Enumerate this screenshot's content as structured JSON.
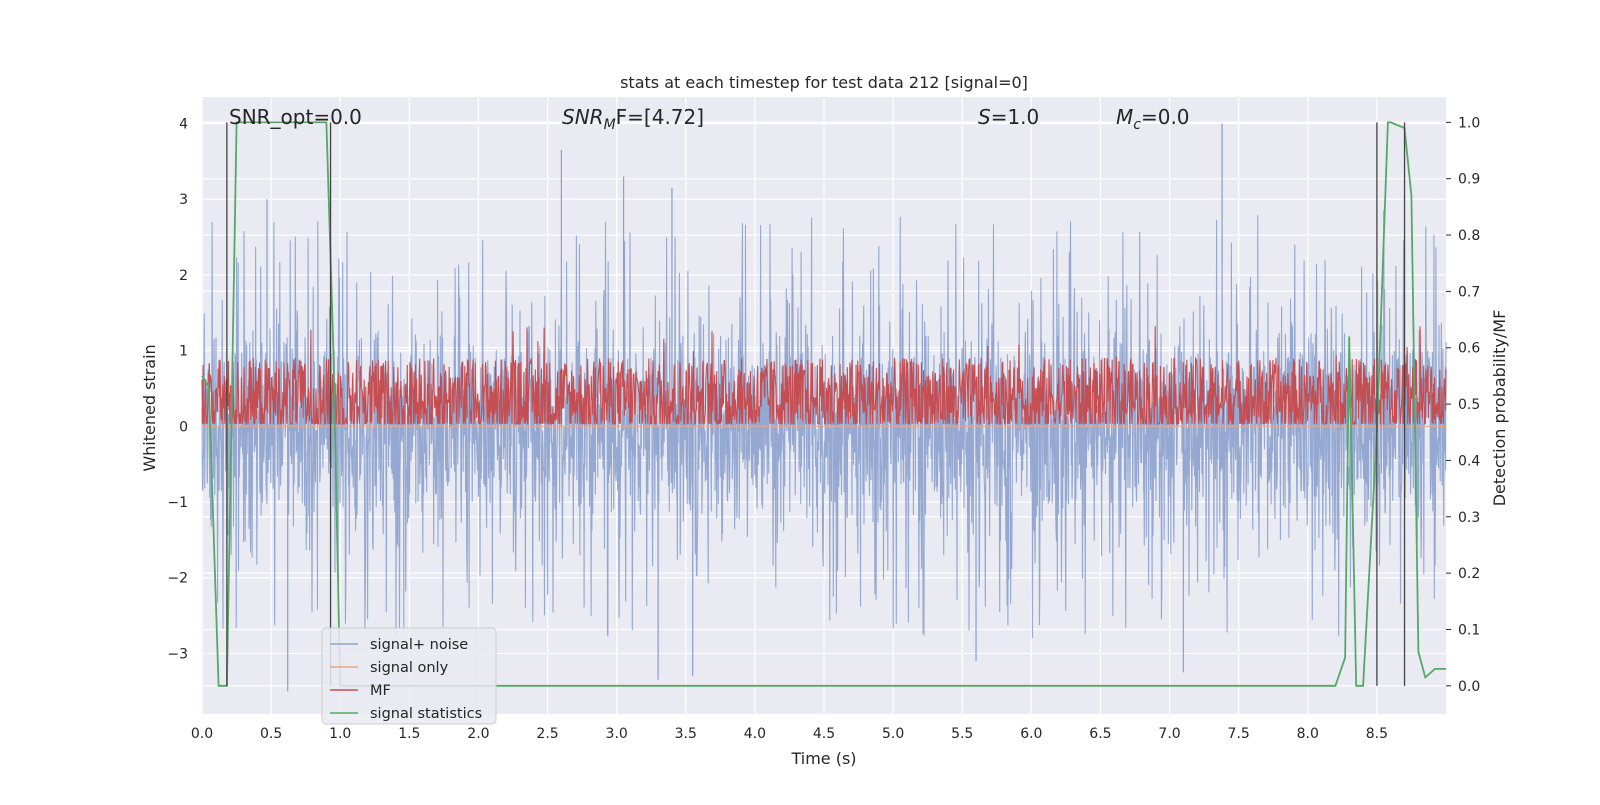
{
  "chart_data": {
    "type": "line",
    "title": "stats at each timestep for test data 212 [signal=0]",
    "xlabel": "Time (s)",
    "ylabel": "Whitened strain",
    "y2label": "Detection probability/MF",
    "xlim": [
      0.0,
      9.0
    ],
    "ylim": [
      -3.8,
      4.35
    ],
    "y2lim": [
      -0.05,
      1.045
    ],
    "x_ticks": [
      0.0,
      0.5,
      1.0,
      1.5,
      2.0,
      2.5,
      3.0,
      3.5,
      4.0,
      4.5,
      5.0,
      5.5,
      6.0,
      6.5,
      7.0,
      7.5,
      8.0,
      8.5
    ],
    "x_tick_labels": [
      "0.0",
      "0.5",
      "1.0",
      "1.5",
      "2.0",
      "2.5",
      "3.0",
      "3.5",
      "4.0",
      "4.5",
      "5.0",
      "5.5",
      "6.0",
      "6.5",
      "7.0",
      "7.5",
      "8.0",
      "8.5"
    ],
    "y_ticks": [
      -3,
      -2,
      -1,
      0,
      1,
      2,
      3,
      4
    ],
    "y_tick_labels": [
      "−3",
      "−2",
      "−1",
      "0",
      "1",
      "2",
      "3",
      "4"
    ],
    "y2_ticks": [
      0.0,
      0.1,
      0.2,
      0.3,
      0.4,
      0.5,
      0.6,
      0.7,
      0.8,
      0.9,
      1.0
    ],
    "y2_tick_labels": [
      "0.0",
      "0.1",
      "0.2",
      "0.3",
      "0.4",
      "0.5",
      "0.6",
      "0.7",
      "0.8",
      "0.9",
      "1.0"
    ],
    "grid": true,
    "legend_position": "lower-left",
    "annotations": {
      "snr_opt": "SNR_opt=0.0",
      "snr_mf_symbol": "SNR",
      "snr_mf_sub": "M",
      "snr_mf_rest": "F=[4.72]",
      "s_symbol": "S",
      "s_rest": "=1.0",
      "mc_symbol": "M",
      "mc_sub": "c",
      "mc_rest": "=0.0"
    },
    "series": [
      {
        "name": "signal+ noise",
        "color": "#8fa4cf",
        "envelope": {
          "typical_low": -1.3,
          "typical_high": 1.3,
          "spike_low": -3.5,
          "spike_high": 4.05
        },
        "peaks": [
          [
            0.47,
            3.0
          ],
          [
            2.6,
            3.65
          ],
          [
            3.05,
            3.3
          ],
          [
            3.4,
            3.15
          ],
          [
            7.38,
            4.0
          ],
          [
            8.55,
            2.85
          ]
        ],
        "troughs": [
          [
            0.62,
            -3.5
          ],
          [
            3.3,
            -3.35
          ],
          [
            3.55,
            -3.3
          ],
          [
            7.1,
            -3.25
          ],
          [
            5.6,
            -3.1
          ]
        ]
      },
      {
        "name": "signal only",
        "color": "#e8a88a",
        "x": [
          0.0,
          9.0
        ],
        "y": [
          0.0,
          0.0
        ]
      },
      {
        "name": "MF",
        "color": "#c44e52",
        "axis": "right",
        "envelope": {
          "base": 0.5,
          "low": 0.465,
          "high": 0.58,
          "max": 0.64
        }
      },
      {
        "name": "signal statistics",
        "color": "#55a868",
        "axis": "right",
        "x": [
          0.0,
          0.05,
          0.12,
          0.18,
          0.25,
          0.3,
          0.9,
          0.95,
          1.0,
          8.0,
          8.15,
          8.2,
          8.27,
          8.3,
          8.35,
          8.4,
          8.5,
          8.58,
          8.6,
          8.7,
          8.75,
          8.8,
          8.85,
          8.92,
          9.0
        ],
        "y": [
          0.55,
          0.53,
          0.0,
          0.0,
          1.0,
          1.0,
          1.0,
          0.6,
          0.0,
          0.0,
          0.0,
          0.0,
          0.05,
          0.62,
          0.0,
          0.0,
          0.45,
          1.0,
          1.0,
          0.99,
          0.87,
          0.06,
          0.015,
          0.03,
          0.03
        ]
      }
    ],
    "vertical_lines": [
      0.18,
      0.93,
      8.5,
      8.7
    ]
  }
}
